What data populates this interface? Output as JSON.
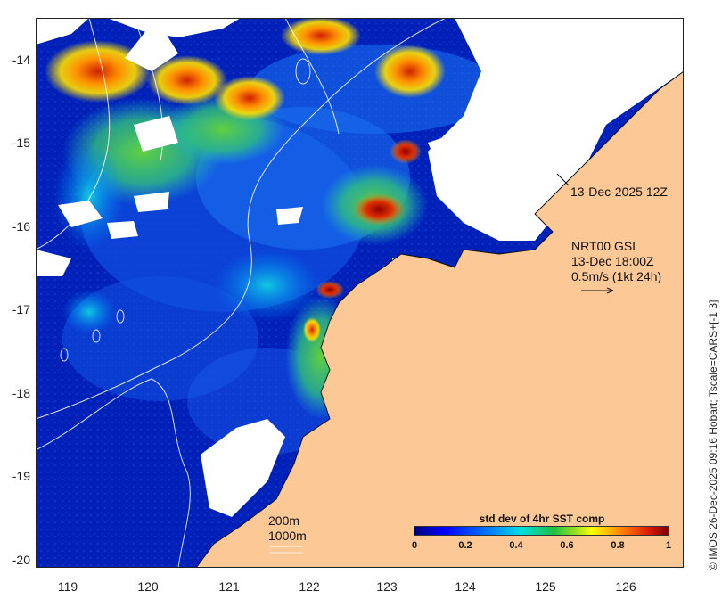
{
  "map": {
    "type": "sea-surface-temperature-variability",
    "colors": {
      "land": "#fcc896",
      "no_data": "#ffffff",
      "contour": "#ffffff",
      "ocean_low": "#00007f",
      "ocean_high": "#800000"
    },
    "lat_ticks": [
      "-14",
      "-15",
      "-16",
      "-17",
      "-18",
      "-19",
      "-20"
    ],
    "lon_ticks": [
      "119",
      "120",
      "121",
      "122",
      "123",
      "124",
      "125",
      "126"
    ],
    "timestamp_label": "13-Dec-2025 12Z",
    "current_label": {
      "line1": "NRT00 GSL",
      "line2": "13-Dec 18:00Z",
      "line3": "0.5m/s (1kt 24h)"
    },
    "isobath_labels": [
      "200m",
      "1000m"
    ],
    "colorbar": {
      "title": "std dev of 4hr SST comp",
      "ticks": [
        "0",
        "0.2",
        "0.4",
        "0.6",
        "0.8",
        "1"
      ],
      "min": 0,
      "max": 1
    },
    "credit": "© IMOS 26-Dec-2025 09:16 Hobart; Tscale=CARS+[-1 3]"
  }
}
